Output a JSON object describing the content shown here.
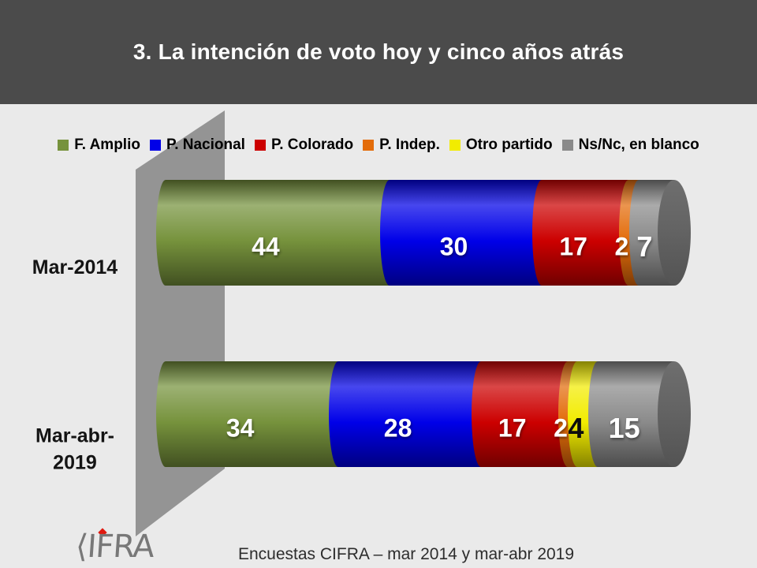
{
  "slide": {
    "title": "3. La intención de voto hoy y cinco años atrás",
    "footer_caption": "Encuestas CIFRA – mar 2014 y mar-abr 2019",
    "logo_text": "CIFRA"
  },
  "colors": {
    "header_bg": "#4b4b4b",
    "body_bg": "#eaeaea",
    "wall_gray": "#949494",
    "end_cap_gray": "#616161",
    "logo_gray": "#787878",
    "logo_diamond_red": "#e0190f",
    "value_label_white": "#ffffff",
    "value_label_black": "#0d0d0d"
  },
  "chart_data": {
    "type": "bar",
    "orientation": "horizontal",
    "stacked": true,
    "style": "3d-cylinder",
    "unit": "percent",
    "title": "3. La intención de voto hoy y cinco años atrás",
    "xlim": [
      0,
      100
    ],
    "grid": false,
    "legend_position": "top",
    "parties": [
      {
        "name": "F. Amplio",
        "color": "#76923C"
      },
      {
        "name": "P. Nacional",
        "color": "#0000E8"
      },
      {
        "name": "P. Colorado",
        "color": "#CC0000"
      },
      {
        "name": "P. Indep.",
        "color": "#E36C0A"
      },
      {
        "name": "Otro partido",
        "color": "#F2EC00"
      },
      {
        "name": "Ns/Nc, en blanco",
        "color": "#8A8A8A"
      }
    ],
    "rows": [
      {
        "label": "Mar-2014",
        "points": [
          {
            "party": "F. Amplio",
            "value": 44
          },
          {
            "party": "P. Nacional",
            "value": 30
          },
          {
            "party": "P. Colorado",
            "value": 17
          },
          {
            "party": "P. Indep.",
            "value": 2
          },
          {
            "party": "Ns/Nc, en blanco",
            "value": 7
          }
        ]
      },
      {
        "label": "Mar-abr-\n2019",
        "points": [
          {
            "party": "F. Amplio",
            "value": 34
          },
          {
            "party": "P. Nacional",
            "value": 28
          },
          {
            "party": "P. Colorado",
            "value": 17
          },
          {
            "party": "P. Indep.",
            "value": 2
          },
          {
            "party": "Otro partido",
            "value": 4
          },
          {
            "party": "Ns/Nc, en blanco",
            "value": 15
          }
        ]
      }
    ]
  }
}
